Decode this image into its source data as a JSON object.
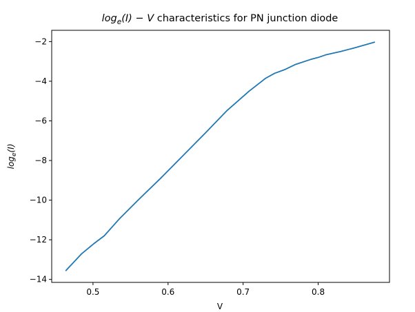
{
  "chart_data": {
    "type": "line",
    "title": {
      "math_part": "log",
      "math_sub": "e",
      "math_arg": "(I) − V",
      "text_part": " characteristics for PN junction diode"
    },
    "xlabel": "V",
    "ylabel": {
      "math_part": "log",
      "math_sub": "e",
      "math_arg": "(I)"
    },
    "xlim": [
      0.445,
      0.895
    ],
    "ylim": [
      -14.15,
      -1.43
    ],
    "xticks": [
      0.5,
      0.6,
      0.7,
      0.8
    ],
    "xtick_labels": [
      "0.5",
      "0.6",
      "0.7",
      "0.8"
    ],
    "yticks": [
      -14,
      -12,
      -10,
      -8,
      -6,
      -4,
      -2
    ],
    "ytick_labels": [
      "−14",
      "−12",
      "−10",
      "−8",
      "−6",
      "−4",
      "−2"
    ],
    "grid": false,
    "series": [
      {
        "name": "log_e(I)",
        "color": "#1f77b4",
        "x": [
          0.464,
          0.485,
          0.501,
          0.515,
          0.535,
          0.56,
          0.59,
          0.62,
          0.65,
          0.678,
          0.708,
          0.73,
          0.742,
          0.755,
          0.77,
          0.79,
          0.8,
          0.81,
          0.83,
          0.85,
          0.875
        ],
        "y": [
          -13.55,
          -12.7,
          -12.2,
          -11.8,
          -10.95,
          -10.0,
          -8.9,
          -7.75,
          -6.6,
          -5.5,
          -4.5,
          -3.85,
          -3.6,
          -3.42,
          -3.15,
          -2.9,
          -2.8,
          -2.67,
          -2.5,
          -2.3,
          -2.03
        ]
      }
    ]
  }
}
